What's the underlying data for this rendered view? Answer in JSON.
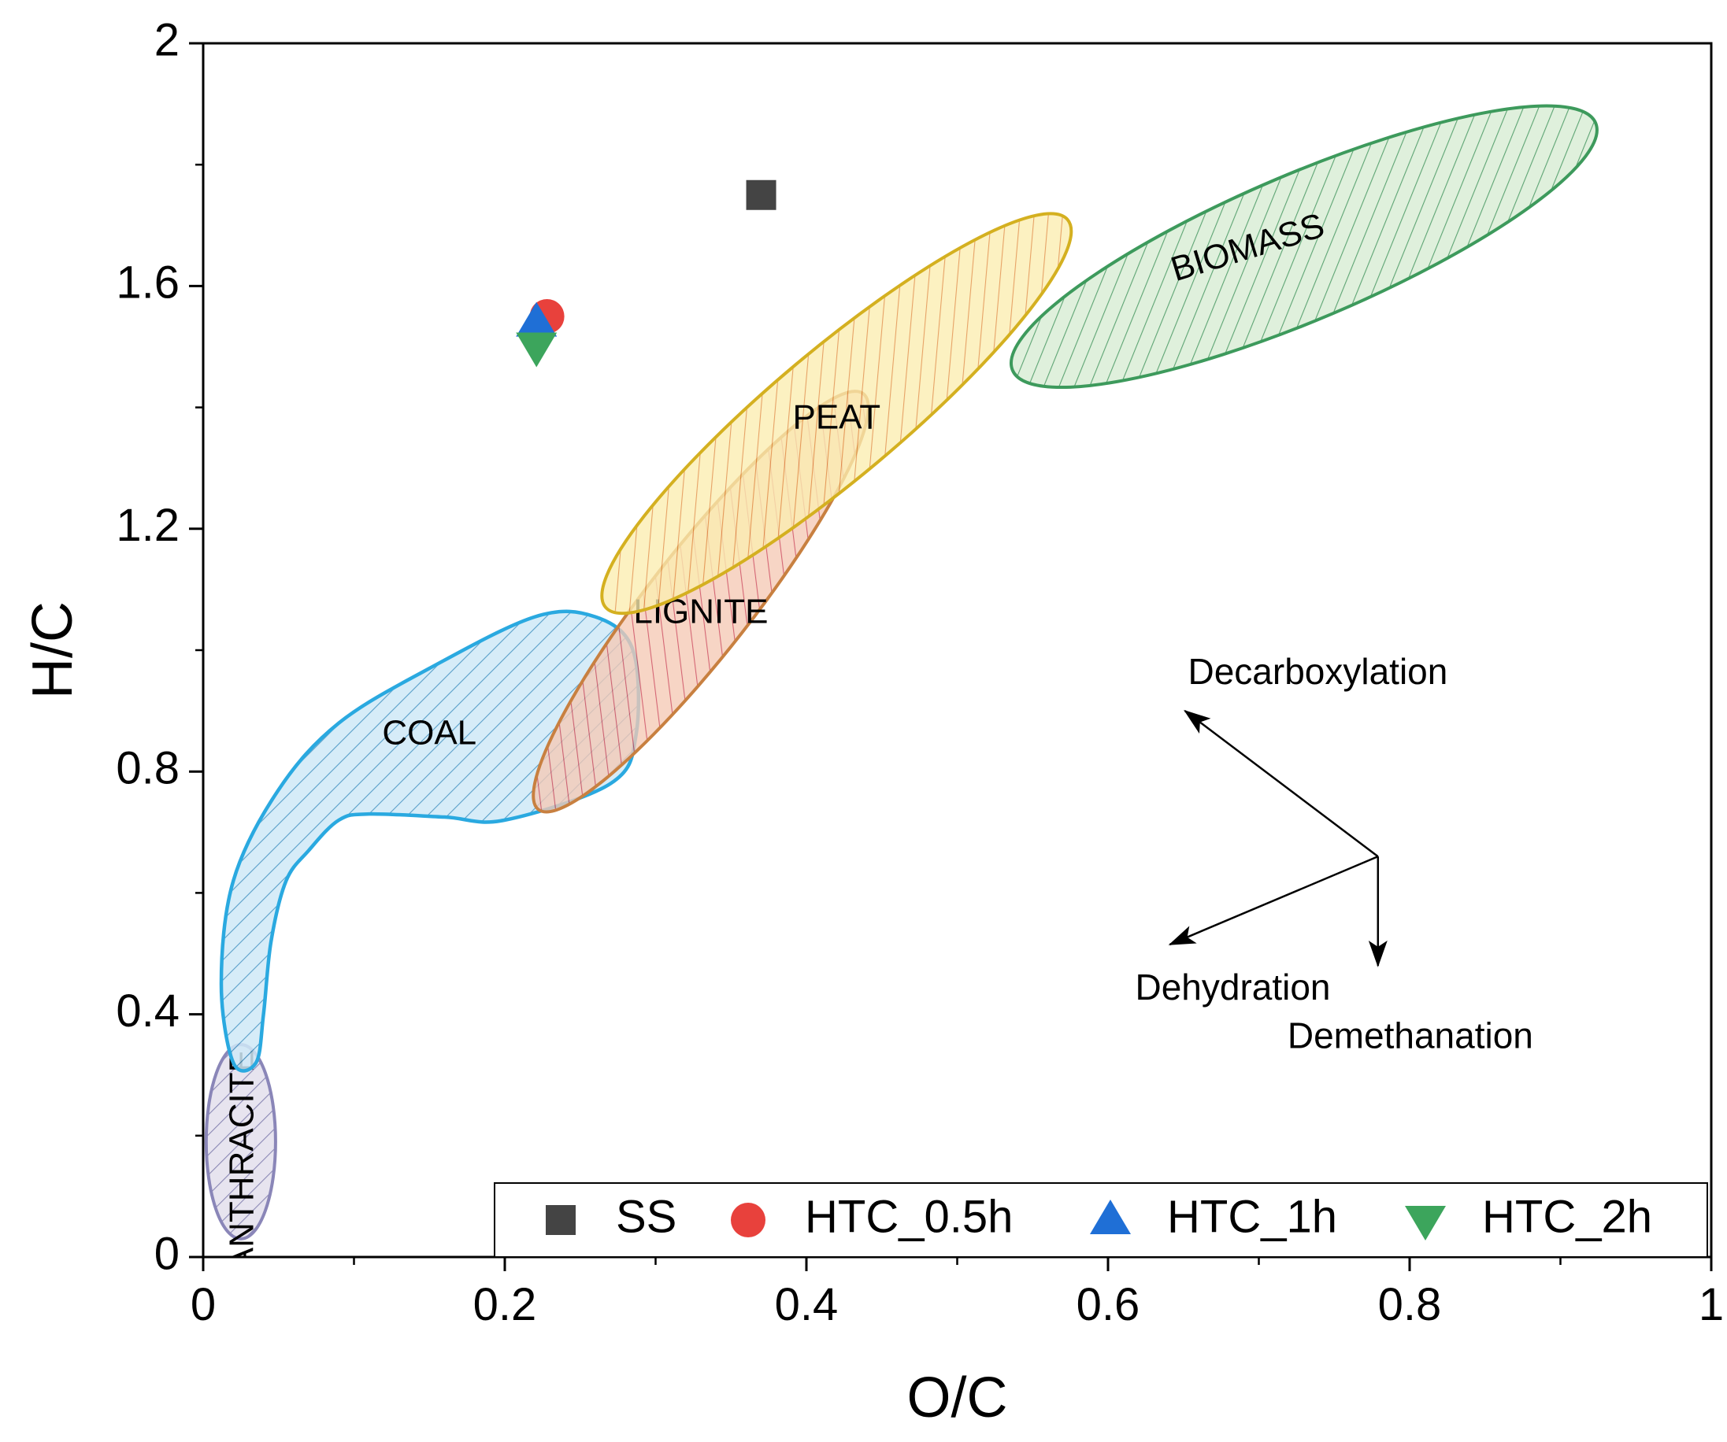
{
  "chart_data": {
    "type": "scatter",
    "title": "",
    "xlabel": "O/C",
    "ylabel": "H/C",
    "xlim": [
      0,
      1
    ],
    "ylim": [
      0,
      2
    ],
    "xticks": [
      0,
      0.2,
      0.4,
      0.6,
      0.8,
      1
    ],
    "xtick_labels": [
      "0",
      "0.2",
      "0.4",
      "0.6",
      "0.8",
      "1"
    ],
    "yticks": [
      0,
      0.4,
      0.8,
      1.2,
      1.6,
      2
    ],
    "ytick_labels": [
      "0",
      "0.4",
      "0.8",
      "1.2",
      "1.6",
      "2"
    ],
    "grid": false,
    "legend_position": "bottom-right",
    "series": [
      {
        "name": "SS",
        "marker": "square",
        "color": "#444444",
        "x": [
          0.37
        ],
        "y": [
          1.75
        ]
      },
      {
        "name": "HTC_0.5h",
        "marker": "circle",
        "color": "#e8413c",
        "x": [
          0.228
        ],
        "y": [
          1.55
        ]
      },
      {
        "name": "HTC_1h",
        "marker": "triangle-up",
        "color": "#1f6fd6",
        "x": [
          0.221
        ],
        "y": [
          1.54
        ]
      },
      {
        "name": "HTC_2h",
        "marker": "triangle-down",
        "color": "#3ca55c",
        "x": [
          0.221
        ],
        "y": [
          1.5
        ]
      }
    ],
    "regions": [
      {
        "name": "ANTHRACITE",
        "label": "ANTHRACITE",
        "shape": "ellipse",
        "center": [
          0.025,
          0.19
        ],
        "semi_axes": [
          0.023,
          0.16
        ],
        "angle_deg": 0,
        "stroke": "#8a86b8",
        "fill": "#e0ddeb",
        "hatch": "#6a66a0"
      },
      {
        "name": "COAL",
        "label": "COAL",
        "shape": "polygon",
        "stroke": "#2aa9e0",
        "fill": "#cfe9f7",
        "hatch": "#3d8fc0",
        "points": [
          [
            0.22,
            1.055
          ],
          [
            0.26,
            1.055
          ],
          [
            0.285,
            1.0
          ],
          [
            0.287,
            0.86
          ],
          [
            0.27,
            0.78
          ],
          [
            0.2,
            0.72
          ],
          [
            0.16,
            0.725
          ],
          [
            0.11,
            0.73
          ],
          [
            0.09,
            0.72
          ],
          [
            0.07,
            0.67
          ],
          [
            0.055,
            0.62
          ],
          [
            0.045,
            0.52
          ],
          [
            0.04,
            0.4
          ],
          [
            0.035,
            0.32
          ],
          [
            0.02,
            0.32
          ],
          [
            0.012,
            0.45
          ],
          [
            0.02,
            0.62
          ],
          [
            0.05,
            0.77
          ],
          [
            0.09,
            0.88
          ],
          [
            0.15,
            0.97
          ]
        ]
      },
      {
        "name": "LIGNITE",
        "label": "LIGNITE",
        "shape": "ellipse",
        "center": [
          0.33,
          1.08
        ],
        "semi_axes": [
          0.175,
          0.085
        ],
        "angle_deg": 52,
        "stroke": "#c88040",
        "fill": "#f5c9b5",
        "hatch": "#c83a4c"
      },
      {
        "name": "PEAT",
        "label": "PEAT",
        "shape": "ellipse",
        "center": [
          0.42,
          1.39
        ],
        "semi_axes": [
          0.2,
          0.105
        ],
        "angle_deg": 40,
        "stroke": "#d4b020",
        "fill": "#fbedb0",
        "hatch": "#e0883a"
      },
      {
        "name": "BIOMASS",
        "label": "BIOMASS",
        "shape": "ellipse",
        "center": [
          0.73,
          1.665
        ],
        "semi_axes": [
          0.21,
          0.12
        ],
        "angle_deg": 23,
        "stroke": "#3d9a5c",
        "fill": "#d6ecd2",
        "hatch": "#2f8a4c"
      }
    ],
    "annotations": {
      "origin": [
        0.779,
        0.66
      ],
      "arrows": [
        {
          "label": "Decarboxylation",
          "to": [
            0.651,
            0.9
          ],
          "label_at": [
            0.653,
            0.96
          ]
        },
        {
          "label": "Dehydration",
          "to": [
            0.641,
            0.515
          ],
          "label_at": [
            0.618,
            0.44
          ]
        },
        {
          "label": "Demethanation",
          "to": [
            0.779,
            0.48
          ],
          "label_at": [
            0.719,
            0.36
          ]
        }
      ]
    }
  }
}
